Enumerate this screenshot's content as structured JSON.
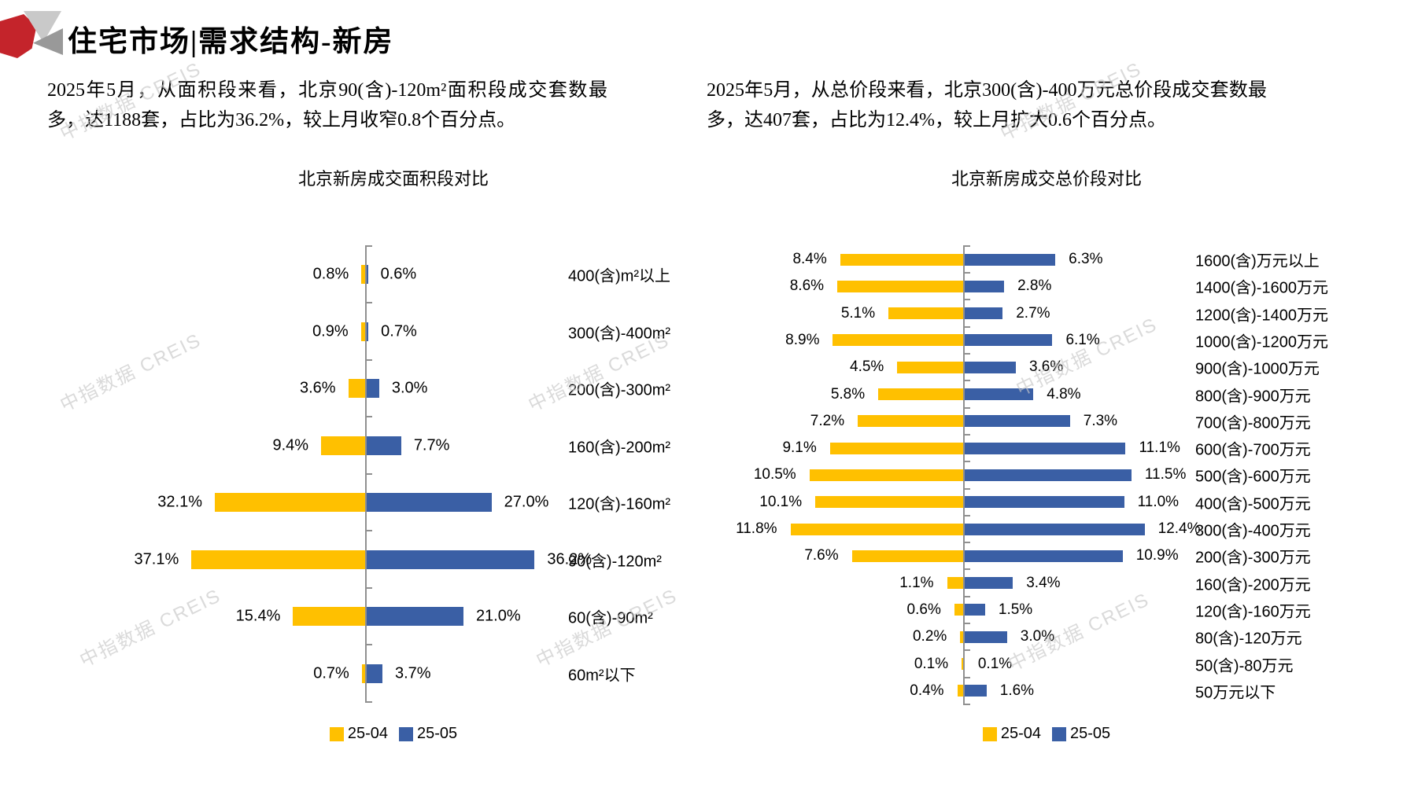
{
  "header": {
    "title": "住宅市场|需求结构-新房"
  },
  "watermark": {
    "text": "中指数据 CREIS"
  },
  "panels": {
    "left": {
      "intro": "2025年5月，从面积段来看，北京90(含)-120m²面积段成交套数最多，达1188套，占比为36.2%，较上月收窄0.8个百分点。",
      "chart_title": "北京新房成交面积段对比"
    },
    "right": {
      "intro": "2025年5月，从总价段来看，北京300(含)-400万元总价段成交套数最多，达407套，占比为12.4%，较上月扩大0.6个百分点。",
      "chart_title": "北京新房成交总价段对比"
    }
  },
  "colors": {
    "series_2504": "#FFC000",
    "series_2505": "#3A5FA5",
    "accent_red": "#C4242B",
    "axis": "#909090",
    "watermark": "#C7C7C7"
  },
  "chart_data": [
    {
      "type": "bar",
      "variant": "diverging-horizontal",
      "title": "北京新房成交面积段对比",
      "unit": "%",
      "legend_position": "bottom",
      "categories": [
        "400(含)m²以上",
        "300(含)-400m²",
        "200(含)-300m²",
        "160(含)-200m²",
        "120(含)-160m²",
        "90(含)-120m²",
        "60(含)-90m²",
        "60m²以下"
      ],
      "series": [
        {
          "name": "25-04",
          "side": "left",
          "values": [
            0.8,
            0.9,
            3.6,
            9.4,
            32.1,
            37.1,
            15.4,
            0.7
          ]
        },
        {
          "name": "25-05",
          "side": "right",
          "values": [
            0.6,
            0.7,
            3.0,
            7.7,
            27.0,
            36.2,
            21.0,
            3.7
          ]
        }
      ]
    },
    {
      "type": "bar",
      "variant": "diverging-horizontal",
      "title": "北京新房成交总价段对比",
      "unit": "%",
      "legend_position": "bottom",
      "categories": [
        "1600(含)万元以上",
        "1400(含)-1600万元",
        "1200(含)-1400万元",
        "1000(含)-1200万元",
        "900(含)-1000万元",
        "800(含)-900万元",
        "700(含)-800万元",
        "600(含)-700万元",
        "500(含)-600万元",
        "400(含)-500万元",
        "300(含)-400万元",
        "200(含)-300万元",
        "160(含)-200万元",
        "120(含)-160万元",
        "80(含)-120万元",
        "50(含)-80万元",
        "50万元以下"
      ],
      "series": [
        {
          "name": "25-04",
          "side": "left",
          "values": [
            8.4,
            8.6,
            5.1,
            8.9,
            4.5,
            5.8,
            7.2,
            9.1,
            10.5,
            10.1,
            11.8,
            7.6,
            1.1,
            0.6,
            0.2,
            0.1,
            0.4
          ]
        },
        {
          "name": "25-05",
          "side": "right",
          "values": [
            6.3,
            2.8,
            2.7,
            6.1,
            3.6,
            4.8,
            7.3,
            11.1,
            11.5,
            11.0,
            12.4,
            10.9,
            3.4,
            1.5,
            3.0,
            0.1,
            1.6
          ]
        }
      ]
    }
  ]
}
